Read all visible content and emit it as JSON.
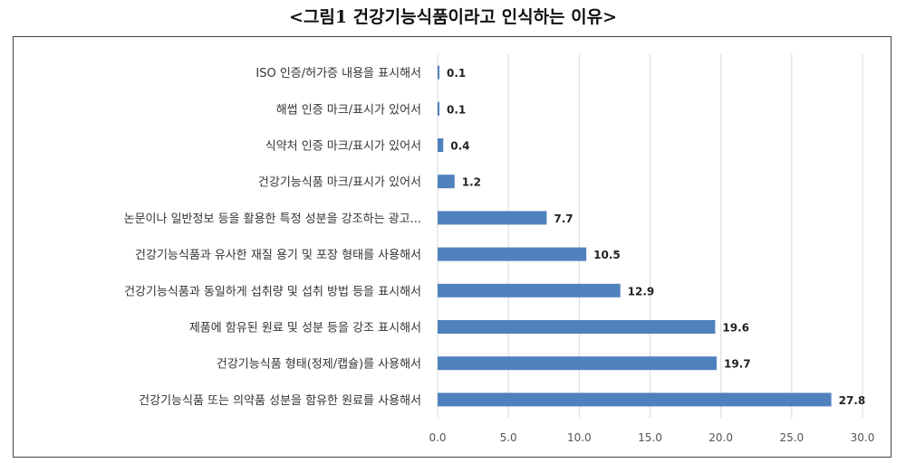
{
  "title": "<그림1 건강기능식품이라고 인식하는 이유>",
  "chart_data": {
    "type": "bar",
    "orientation": "horizontal",
    "categories": [
      "ISO 인증/허가증 내용을 표시해서",
      "해썹 인증 마크/표시가 있어서",
      "식약처 인증 마크/표시가 있어서",
      "건강기능식품 마크/표시가 있어서",
      "논문이나 일반정보 등을 활용한 특정 성분을 강조하는 광고...",
      "건강기능식품과 유사한 재질 용기 및 포장 형태를 사용해서",
      "건강기능식품과 동일하게 섭취량 및 섭취 방법 등을 표시해서",
      "제품에 함유된 원료 및 성분 등을 강조 표시해서",
      "건강기능식품 형태(정제/캡슐)를 사용해서",
      "건강기능식품 또는 의약품 성분을 함유한 원료를 사용해서"
    ],
    "values": [
      0.1,
      0.1,
      0.4,
      1.2,
      7.7,
      10.5,
      12.9,
      19.6,
      19.7,
      27.8
    ],
    "value_labels": [
      "0.1",
      "0.1",
      "0.4",
      "1.2",
      "7.7",
      "10.5",
      "12.9",
      "19.6",
      "19.7",
      "27.8"
    ],
    "xlim": [
      0,
      30
    ],
    "xticks": [
      "0.0",
      "5.0",
      "10.0",
      "15.0",
      "20.0",
      "25.0",
      "30.0"
    ],
    "xtick_values": [
      0,
      5,
      10,
      15,
      20,
      25,
      30
    ],
    "bar_color": "#4f81bd",
    "grid": true,
    "grid_color": "#d9d9d9"
  }
}
